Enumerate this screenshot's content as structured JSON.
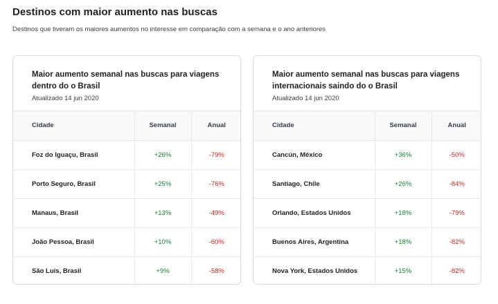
{
  "header": {
    "title": "Destinos com maior aumento nas buscas",
    "subtitle": "Destinos que tiveram os maiores aumentos no interesse em comparação com a semana e o ano anteriores"
  },
  "colors": {
    "positive": "#188038",
    "negative": "#c5221f"
  },
  "cards": [
    {
      "title": "Maior aumento semanal nas buscas para viagens dentro do o Brasil",
      "updated": "Atualizado 14 jun 2020",
      "columns": [
        "Cidade",
        "Semanal",
        "Anual"
      ],
      "rows": [
        {
          "city": "Foz do Iguaçu, Brasil",
          "weekly": "+26%",
          "yearly": "-79%"
        },
        {
          "city": "Porto Seguro, Brasil",
          "weekly": "+25%",
          "yearly": "-76%"
        },
        {
          "city": "Manaus, Brasil",
          "weekly": "+13%",
          "yearly": "-49%"
        },
        {
          "city": "João Pessoa, Brasil",
          "weekly": "+10%",
          "yearly": "-60%"
        },
        {
          "city": "São Luís, Brasil",
          "weekly": "+9%",
          "yearly": "-58%"
        }
      ]
    },
    {
      "title": "Maior aumento semanal nas buscas para viagens internacionais saindo do o Brasil",
      "updated": "Atualizado 14 jun 2020",
      "columns": [
        "Cidade",
        "Semanal",
        "Anual"
      ],
      "rows": [
        {
          "city": "Cancún, México",
          "weekly": "+36%",
          "yearly": "-50%"
        },
        {
          "city": "Santiago, Chile",
          "weekly": "+26%",
          "yearly": "-84%"
        },
        {
          "city": "Orlando, Estados Unidos",
          "weekly": "+18%",
          "yearly": "-79%"
        },
        {
          "city": "Buenos Aires, Argentina",
          "weekly": "+18%",
          "yearly": "-82%"
        },
        {
          "city": "Nova York, Estados Unidos",
          "weekly": "+15%",
          "yearly": "-82%"
        }
      ]
    }
  ]
}
